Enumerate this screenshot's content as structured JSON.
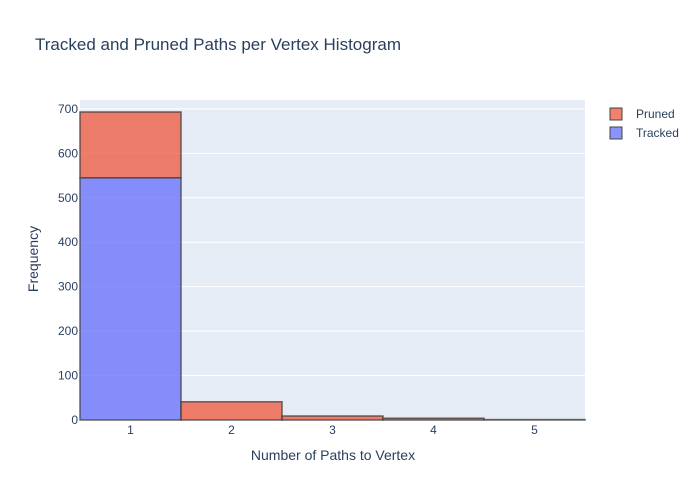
{
  "chart_data": {
    "type": "bar",
    "title": "Tracked and Pruned Paths per Vertex Histogram",
    "xlabel": "Number of Paths to Vertex",
    "ylabel": "Frequency",
    "categories": [
      "1",
      "2",
      "3",
      "4",
      "5"
    ],
    "barmode": "stacked",
    "xlim": [
      0.5,
      5.5
    ],
    "ylim": [
      0,
      720
    ],
    "yticks": [
      0,
      100,
      200,
      300,
      400,
      500,
      600,
      700
    ],
    "grid": true,
    "legend_position": "top-right",
    "series": [
      {
        "name": "Tracked",
        "values": [
          545,
          0,
          0,
          0,
          0
        ],
        "color": "#636efa"
      },
      {
        "name": "Pruned",
        "values": [
          148,
          41,
          9,
          4,
          1
        ],
        "color": "#ef553b"
      }
    ],
    "plot_background": "#e5ecf6"
  }
}
